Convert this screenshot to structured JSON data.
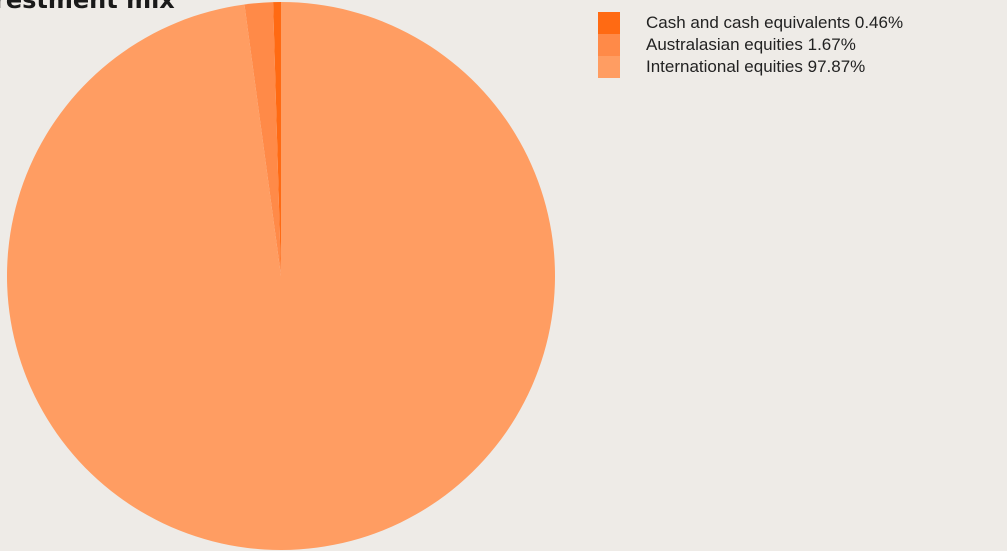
{
  "chart_data": {
    "type": "pie",
    "title": "restment mix",
    "slices": [
      {
        "label": "Cash and cash equivalents",
        "value": 0.46,
        "value_label": "0.46%",
        "color": "#ff6a13"
      },
      {
        "label": "Australasian equities",
        "value": 1.67,
        "value_label": "1.67%",
        "color": "#ff8a48"
      },
      {
        "label": "International equities",
        "value": 97.87,
        "value_label": "97.87%",
        "color": "#ff9d62"
      }
    ],
    "legend_position": "top-right",
    "start_angle": "12 o'clock, counter-clockwise"
  }
}
